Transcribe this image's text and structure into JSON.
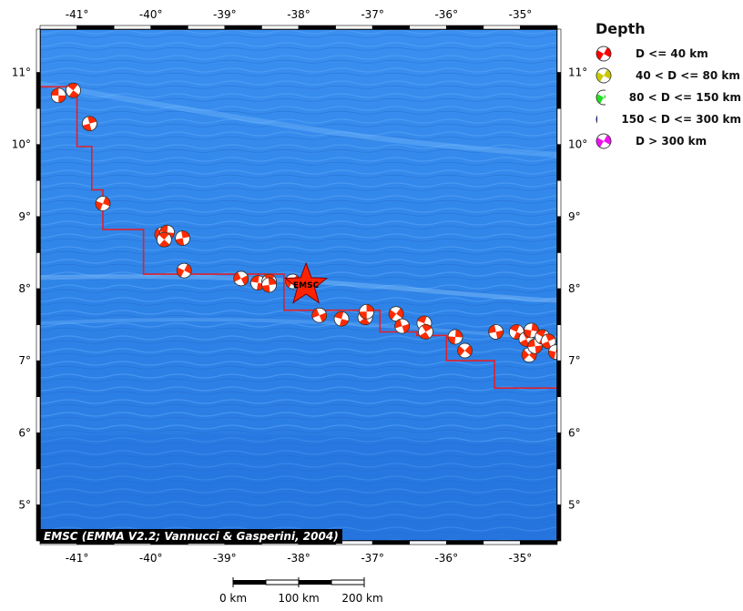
{
  "map": {
    "lon_range": [
      -41.5,
      -34.5
    ],
    "lat_range": [
      4.5,
      11.6
    ],
    "lon_ticks": [
      -41,
      -40,
      -39,
      -38,
      -37,
      -36,
      -35
    ],
    "lon_tick_labels": [
      "-41°",
      "-40°",
      "-39°",
      "-38°",
      "-37°",
      "-36°",
      "-35°"
    ],
    "lat_ticks": [
      5,
      6,
      7,
      8,
      9,
      10,
      11
    ],
    "lat_tick_labels": [
      "5°",
      "6°",
      "7°",
      "8°",
      "9°",
      "10°",
      "11°"
    ],
    "ocean_color": "#2f86e6",
    "plate_boundary_color": "#e0202a",
    "plate_boundary": [
      [
        -41.5,
        10.8
      ],
      [
        -41.0,
        10.8
      ],
      [
        -41.0,
        9.97
      ],
      [
        -40.8,
        9.97
      ],
      [
        -40.8,
        9.37
      ],
      [
        -40.65,
        9.37
      ],
      [
        -40.65,
        8.82
      ],
      [
        -40.1,
        8.82
      ],
      [
        -40.1,
        8.2
      ],
      [
        -38.2,
        8.2
      ],
      [
        -38.2,
        7.7
      ],
      [
        -36.9,
        7.7
      ],
      [
        -36.9,
        7.4
      ],
      [
        -36.4,
        7.4
      ],
      [
        -36.4,
        7.35
      ],
      [
        -36.0,
        7.35
      ],
      [
        -36.0,
        7.0
      ],
      [
        -35.35,
        7.0
      ],
      [
        -35.35,
        6.62
      ],
      [
        -34.5,
        6.62
      ]
    ],
    "events": [
      [
        -41.25,
        10.68
      ],
      [
        -41.05,
        10.75
      ],
      [
        -40.83,
        10.29
      ],
      [
        -40.65,
        9.18
      ],
      [
        -39.85,
        8.75
      ],
      [
        -39.78,
        8.78
      ],
      [
        -39.82,
        8.68
      ],
      [
        -39.57,
        8.7
      ],
      [
        -39.55,
        8.25
      ],
      [
        -38.78,
        8.14
      ],
      [
        -38.55,
        8.08
      ],
      [
        -38.4,
        8.1
      ],
      [
        -38.4,
        8.05
      ],
      [
        -38.08,
        8.1
      ],
      [
        -37.72,
        7.63
      ],
      [
        -37.42,
        7.58
      ],
      [
        -37.1,
        7.6
      ],
      [
        -37.08,
        7.68
      ],
      [
        -36.68,
        7.65
      ],
      [
        -36.6,
        7.48
      ],
      [
        -36.3,
        7.52
      ],
      [
        -36.28,
        7.4
      ],
      [
        -35.88,
        7.33
      ],
      [
        -35.75,
        7.14
      ],
      [
        -35.33,
        7.4
      ],
      [
        -35.05,
        7.4
      ],
      [
        -34.92,
        7.3
      ],
      [
        -34.85,
        7.42
      ],
      [
        -34.88,
        7.08
      ],
      [
        -34.8,
        7.2
      ],
      [
        -34.7,
        7.33
      ],
      [
        -34.62,
        7.27
      ],
      [
        -34.52,
        7.12
      ]
    ],
    "event_color": "#ff2a00",
    "main_event": {
      "lon": -37.9,
      "lat": 8.05,
      "label": "EMSC",
      "color": "#ff2200"
    }
  },
  "legend": {
    "title": "Depth",
    "items": [
      {
        "label": "D <= 40 km",
        "color": "#ff0000"
      },
      {
        "label": "40 < D <= 80 km",
        "color": "#c8c800"
      },
      {
        "label": "80 < D <= 150 km",
        "color": "#22dd22"
      },
      {
        "label": "150 < D <= 300 km",
        "color": "#0010e0"
      },
      {
        "label": "D > 300 km",
        "color": "#ee10ee"
      }
    ]
  },
  "credit": "EMSC (EMMA V2.2; Vannucci & Gasperini, 2004)",
  "scale_bar": {
    "labels": [
      "0 km",
      "100 km",
      "200 km"
    ]
  }
}
